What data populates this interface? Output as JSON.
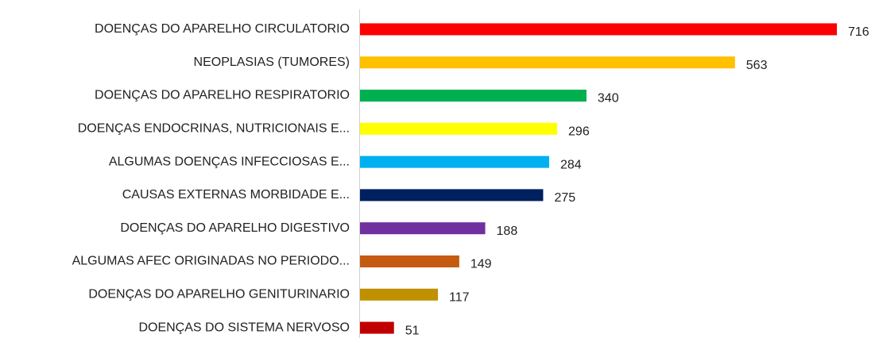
{
  "chart_data": {
    "type": "hbar",
    "categories": [
      "DOENÇAS DO APARELHO CIRCULATORIO",
      "NEOPLASIAS (TUMORES)",
      "DOENÇAS DO APARELHO RESPIRATORIO",
      "DOENÇAS ENDOCRINAS, NUTRICIONAIS E...",
      "ALGUMAS DOENÇAS INFECCIOSAS E...",
      "CAUSAS EXTERNAS MORBIDADE E...",
      "DOENÇAS DO APARELHO DIGESTIVO",
      "ALGUMAS AFEC ORIGINADAS NO PERIODO...",
      "DOENÇAS DO APARELHO GENITURINARIO",
      "DOENÇAS DO SISTEMA NERVOSO"
    ],
    "values": [
      716,
      563,
      340,
      296,
      284,
      275,
      188,
      149,
      117,
      51
    ],
    "colors": [
      "#ff0000",
      "#ffc000",
      "#00b050",
      "#ffff00",
      "#00b0f0",
      "#002060",
      "#7030a0",
      "#c55a11",
      "#bf9000",
      "#c00000"
    ]
  }
}
